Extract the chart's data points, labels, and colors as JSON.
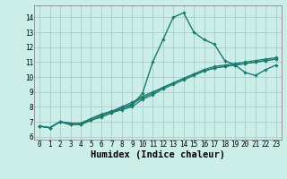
{
  "xlabel": "Humidex (Indice chaleur)",
  "bg_color": "#cceee8",
  "grid_color": "#aacccc",
  "line_color": "#1a7a6e",
  "xlim": [
    -0.5,
    23.5
  ],
  "ylim": [
    5.8,
    14.8
  ],
  "xticks": [
    0,
    1,
    2,
    3,
    4,
    5,
    6,
    7,
    8,
    9,
    10,
    11,
    12,
    13,
    14,
    15,
    16,
    17,
    18,
    19,
    20,
    21,
    22,
    23
  ],
  "yticks": [
    6,
    7,
    8,
    9,
    10,
    11,
    12,
    13,
    14
  ],
  "lines": [
    {
      "x": [
        0,
        1,
        2,
        3,
        4,
        5,
        6,
        7,
        8,
        9,
        10,
        11,
        12,
        13,
        14,
        15,
        16,
        17,
        18,
        19,
        20,
        21,
        22,
        23
      ],
      "y": [
        6.7,
        6.6,
        7.0,
        6.9,
        6.9,
        7.2,
        7.5,
        7.7,
        7.9,
        8.1,
        8.9,
        11.0,
        12.5,
        14.0,
        14.3,
        13.0,
        12.5,
        12.2,
        11.1,
        10.8,
        10.3,
        10.1,
        10.5,
        10.8
      ],
      "marker": "D",
      "marker_size": 1.8,
      "linewidth": 1.0
    },
    {
      "x": [
        0,
        1,
        2,
        3,
        4,
        5,
        6,
        7,
        8,
        9,
        10,
        11,
        12,
        13,
        14,
        15,
        16,
        17,
        18,
        19,
        20,
        21,
        22,
        23
      ],
      "y": [
        6.7,
        6.6,
        7.0,
        6.8,
        6.8,
        7.1,
        7.3,
        7.6,
        7.8,
        8.0,
        8.5,
        8.8,
        9.2,
        9.5,
        9.8,
        10.1,
        10.4,
        10.6,
        10.7,
        10.8,
        10.9,
        11.0,
        11.1,
        11.2
      ],
      "marker": "D",
      "marker_size": 1.8,
      "linewidth": 0.9
    },
    {
      "x": [
        0,
        1,
        2,
        3,
        4,
        5,
        6,
        7,
        8,
        9,
        10,
        11,
        12,
        13,
        14,
        15,
        16,
        17,
        18,
        19,
        20,
        21,
        22,
        23
      ],
      "y": [
        6.7,
        6.6,
        7.0,
        6.9,
        6.9,
        7.2,
        7.5,
        7.7,
        8.0,
        8.3,
        8.7,
        9.0,
        9.3,
        9.6,
        9.9,
        10.2,
        10.5,
        10.7,
        10.8,
        10.9,
        11.0,
        11.1,
        11.2,
        11.3
      ],
      "marker": "D",
      "marker_size": 1.8,
      "linewidth": 0.9
    },
    {
      "x": [
        0,
        1,
        2,
        3,
        4,
        5,
        6,
        7,
        8,
        9,
        10,
        11,
        12,
        13,
        14,
        15,
        16,
        17,
        18,
        19,
        20,
        21,
        22,
        23
      ],
      "y": [
        6.7,
        6.6,
        7.0,
        6.8,
        6.8,
        7.1,
        7.4,
        7.6,
        7.9,
        8.2,
        8.6,
        8.9,
        9.3,
        9.6,
        9.9,
        10.2,
        10.4,
        10.6,
        10.7,
        10.8,
        10.9,
        11.0,
        11.1,
        11.2
      ],
      "marker": "D",
      "marker_size": 1.8,
      "linewidth": 0.9
    }
  ],
  "tick_fontsize": 5.5,
  "xlabel_fontsize": 7.5,
  "xlabel_fontweight": "bold",
  "figwidth": 3.2,
  "figheight": 2.0,
  "dpi": 100
}
